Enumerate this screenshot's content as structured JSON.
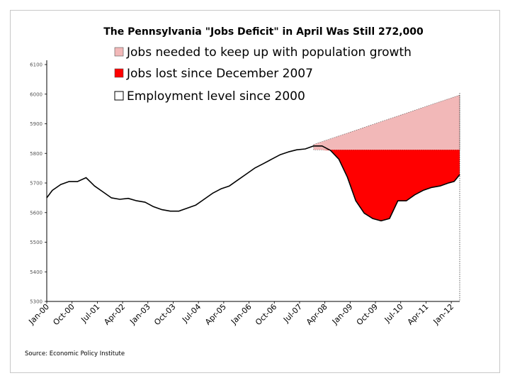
{
  "chart_data": {
    "type": "area",
    "title": "The Pennsylvania \"Jobs Deficit\" in April Was Still 272,000",
    "source": "Source: Economic Policy Institute",
    "ylim": [
      5300,
      6100
    ],
    "y_ticks": [
      5300,
      5400,
      5500,
      5600,
      5700,
      5800,
      5900,
      6000,
      6100
    ],
    "x_ticks": [
      "Jan-00",
      "Oct-00",
      "Jul-01",
      "Apr-02",
      "Jan-03",
      "Oct-03",
      "Jul-04",
      "Apr-05",
      "Jan-06",
      "Oct-06",
      "Jul-07",
      "Apr-08",
      "Jan-09",
      "Oct-09",
      "Jul-10",
      "Apr-11",
      "Jan-12"
    ],
    "legend_position": "top",
    "grid": false,
    "reference_level": 5812,
    "series": [
      {
        "name": "Jobs needed to keep up with population growth",
        "color": "#f2b8b8",
        "x": [
          "2007-12",
          "2012-04"
        ],
        "values": [
          5830,
          5997
        ]
      },
      {
        "name": "Jobs lost since December 2007",
        "color": "#ff0000"
      },
      {
        "name": "Employment level since 2000",
        "color": "#000000",
        "x": [
          "2000-01",
          "2000-03",
          "2000-06",
          "2000-09",
          "2000-12",
          "2001-03",
          "2001-06",
          "2001-09",
          "2001-12",
          "2002-03",
          "2002-06",
          "2002-09",
          "2002-12",
          "2003-03",
          "2003-06",
          "2003-09",
          "2003-12",
          "2004-03",
          "2004-06",
          "2004-09",
          "2004-12",
          "2005-03",
          "2005-06",
          "2005-09",
          "2005-12",
          "2006-03",
          "2006-06",
          "2006-09",
          "2006-12",
          "2007-03",
          "2007-06",
          "2007-09",
          "2007-12",
          "2008-03",
          "2008-06",
          "2008-09",
          "2008-12",
          "2009-03",
          "2009-06",
          "2009-09",
          "2009-12",
          "2010-03",
          "2010-06",
          "2010-09",
          "2010-12",
          "2011-03",
          "2011-06",
          "2011-09",
          "2011-12",
          "2012-02",
          "2012-04"
        ],
        "values": [
          5650,
          5675,
          5695,
          5705,
          5705,
          5718,
          5690,
          5670,
          5650,
          5645,
          5648,
          5640,
          5635,
          5620,
          5610,
          5605,
          5605,
          5615,
          5625,
          5645,
          5665,
          5680,
          5690,
          5710,
          5730,
          5750,
          5765,
          5780,
          5795,
          5805,
          5812,
          5815,
          5825,
          5825,
          5810,
          5780,
          5720,
          5640,
          5598,
          5580,
          5572,
          5580,
          5640,
          5640,
          5660,
          5675,
          5685,
          5690,
          5700,
          5705,
          5728
        ]
      }
    ]
  }
}
